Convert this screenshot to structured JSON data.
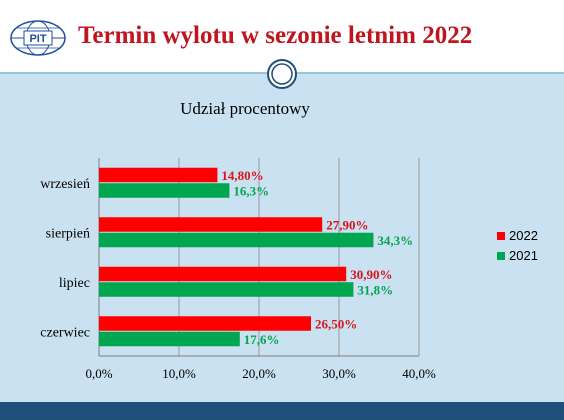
{
  "header": {
    "title": "Termin wylotu w sezonie letnim 2022",
    "logo_text": "PIT"
  },
  "colors": {
    "title": "#c0141e",
    "series_2022": "#ff0000",
    "series_2021": "#00a650",
    "label_2022": "#d9141e",
    "label_2021": "#00a650",
    "band": "#c9e1f0",
    "footer": "#1f4e79"
  },
  "chart_data": {
    "type": "bar",
    "orientation": "horizontal",
    "title": "Udział procentowy",
    "categories": [
      "wrzesień",
      "sierpień",
      "lipiec",
      "czerwiec"
    ],
    "series": [
      {
        "name": "2022",
        "values": [
          14.8,
          27.9,
          30.9,
          26.5
        ],
        "labels": [
          "14,80%",
          "27,90%",
          "30,90%",
          "26,50%"
        ]
      },
      {
        "name": "2021",
        "values": [
          16.3,
          34.3,
          31.8,
          17.6
        ],
        "labels": [
          "16,3%",
          "34,3%",
          "31,8%",
          "17,6%"
        ]
      }
    ],
    "xlim": [
      0,
      40
    ],
    "xticks": [
      "0,0%",
      "10,0%",
      "20,0%",
      "30,0%",
      "40,0%"
    ],
    "grid": true,
    "legend_position": "right"
  }
}
